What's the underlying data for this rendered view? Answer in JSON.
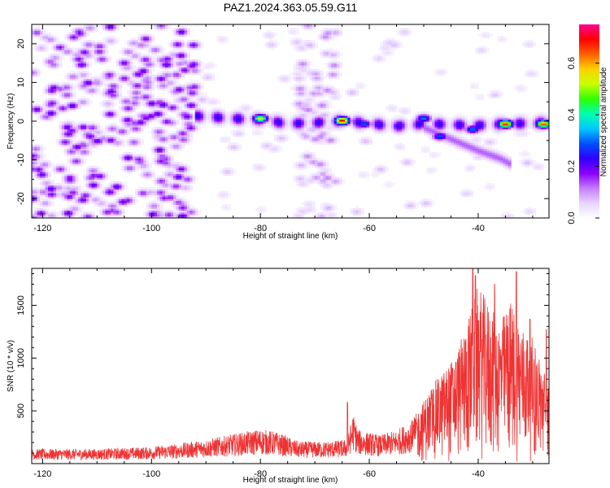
{
  "figure": {
    "title": "PAZ1.2024.363.05.59.G11"
  },
  "chart_data": [
    {
      "type": "heatmap",
      "xlabel": "Height of straight line (km)",
      "ylabel": "Frequency (Hz)",
      "xlim": [
        -122,
        -27
      ],
      "ylim": [
        -25,
        25
      ],
      "xticks": [
        -120,
        -100,
        -80,
        -60,
        -40
      ],
      "yticks": [
        -20,
        -10,
        0,
        10,
        20
      ],
      "colorbar": {
        "label": "Normalized spectral amplitude",
        "range": [
          0,
          0.75
        ],
        "ticks": [
          0.0,
          0.2,
          0.4,
          0.6
        ],
        "colormap": [
          "#ffffff",
          "#e8d4ff",
          "#c47cff",
          "#8a00ff",
          "#3000ff",
          "#0050ff",
          "#00c8ff",
          "#00ffb0",
          "#30ff00",
          "#c8ff00",
          "#ffd000",
          "#ff6000",
          "#ff0000",
          "#ff0090"
        ]
      },
      "ridge": {
        "description": "main frequency ridge near 0 Hz from -92 km to -27 km",
        "points": [
          [
            -92,
            1.5
          ],
          [
            -85,
            0.8
          ],
          [
            -80,
            0.5
          ],
          [
            -75,
            -0.5
          ],
          [
            -70,
            -0.3
          ],
          [
            -65,
            0.2
          ],
          [
            -60,
            -0.5
          ],
          [
            -55,
            -1.2
          ],
          [
            -50,
            -0.5
          ],
          [
            -45,
            -0.8
          ],
          [
            -40,
            -1.0
          ],
          [
            -35,
            -0.5
          ],
          [
            -30,
            -0.5
          ],
          [
            -27,
            0.0
          ]
        ],
        "secondary_branch": [
          [
            -50,
            -1.5
          ],
          [
            -45,
            -4.5
          ],
          [
            -40,
            -7.5
          ],
          [
            -36,
            -9.5
          ],
          [
            -34,
            -11.0
          ]
        ],
        "peaks": [
          [
            -80,
            0.8,
            0.55
          ],
          [
            -65,
            0.2,
            0.72
          ],
          [
            -61,
            -0.6,
            0.3
          ],
          [
            -50,
            0.8,
            0.32
          ],
          [
            -35,
            -0.6,
            0.7
          ],
          [
            -28,
            -0.6,
            0.68
          ],
          [
            -41,
            -2.0,
            0.32
          ],
          [
            -47,
            -3.8,
            0.3
          ]
        ]
      },
      "noise_region_x": [
        -122,
        -92
      ],
      "noise_band_x": [
        -73,
        -66
      ]
    },
    {
      "type": "line",
      "xlabel": "Height of straight line (km)",
      "ylabel": "SNR (10 * v/v)",
      "xlim": [
        -122,
        -27
      ],
      "ylim": [
        0,
        1850
      ],
      "xticks": [
        -120,
        -100,
        -80,
        -60,
        -40
      ],
      "yticks": [
        500,
        1000,
        1500
      ],
      "series": [
        {
          "color": "#ee3333",
          "envelope": [
            [
              -122,
              140
            ],
            [
              -110,
              140
            ],
            [
              -100,
              160
            ],
            [
              -95,
              190
            ],
            [
              -90,
              230
            ],
            [
              -85,
              280
            ],
            [
              -80,
              330
            ],
            [
              -77,
              300
            ],
            [
              -73,
              210
            ],
            [
              -68,
              210
            ],
            [
              -64,
              230
            ],
            [
              -63,
              480
            ],
            [
              -62,
              320
            ],
            [
              -58,
              270
            ],
            [
              -55,
              320
            ],
            [
              -52,
              420
            ],
            [
              -50,
              600
            ],
            [
              -48,
              780
            ],
            [
              -46,
              900
            ],
            [
              -44,
              1050
            ],
            [
              -42,
              1350
            ],
            [
              -40,
              1700
            ],
            [
              -38,
              1500
            ],
            [
              -36,
              1350
            ],
            [
              -34,
              1550
            ],
            [
              -32,
              1300
            ],
            [
              -30,
              1200
            ],
            [
              -28,
              900
            ],
            [
              -27,
              800
            ]
          ],
          "peaks": [
            [
              -64,
              580
            ],
            [
              -41,
              1870
            ],
            [
              -40.5,
              1780
            ],
            [
              -37,
              1700
            ],
            [
              -33,
              1820
            ],
            [
              -30.5,
              1370
            ],
            [
              -27.5,
              1270
            ]
          ]
        }
      ]
    }
  ]
}
